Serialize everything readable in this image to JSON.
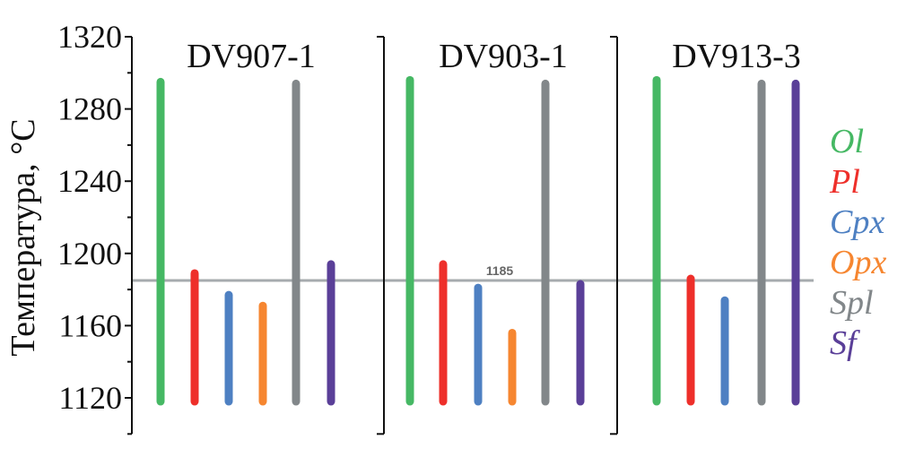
{
  "chart_data": {
    "type": "bar",
    "ylabel": "Температура, °C",
    "ylim": [
      1100,
      1320
    ],
    "yticks": [
      "1120",
      "1160",
      "1200",
      "1240",
      "1280",
      "1320"
    ],
    "bar_base": 1118,
    "grid": false,
    "legend_placement": "right",
    "reference_line": {
      "value": 1185,
      "label": "1185",
      "color": "#a6abae"
    },
    "series": [
      {
        "name": "Ol",
        "color": "#46b864"
      },
      {
        "name": "Pl",
        "color": "#ee2f2a"
      },
      {
        "name": "Cpx",
        "color": "#4e80c2"
      },
      {
        "name": "Opx",
        "color": "#f68630"
      },
      {
        "name": "Spl",
        "color": "#82878a"
      },
      {
        "name": "Sf",
        "color": "#5a3f98"
      }
    ],
    "panels": [
      {
        "title": "DV907-1",
        "values": {
          "Ol": 1295,
          "Pl": 1189,
          "Cpx": 1177,
          "Opx": 1171,
          "Spl": 1294,
          "Sf": 1194
        }
      },
      {
        "title": "DV903-1",
        "values": {
          "Ol": 1296,
          "Pl": 1194,
          "Cpx": 1181,
          "Opx": 1156,
          "Spl": 1294,
          "Sf": 1183
        }
      },
      {
        "title": "DV913-3",
        "values": {
          "Ol": 1296,
          "Pl": 1186,
          "Cpx": 1174,
          "Spl": 1294,
          "Sf": 1294
        }
      }
    ]
  }
}
